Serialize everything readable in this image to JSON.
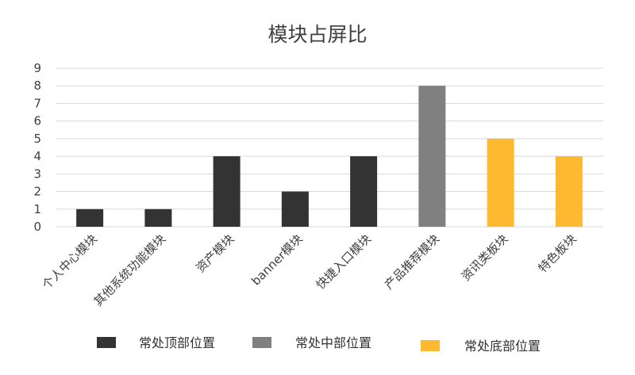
{
  "chart_data": {
    "type": "bar",
    "title": "模块占屏比",
    "xlabel": "",
    "ylabel": "",
    "ylim": [
      0,
      9
    ],
    "yticks": [
      0,
      1,
      2,
      3,
      4,
      5,
      6,
      7,
      8,
      9
    ],
    "grid": true,
    "legend_position": "bottom",
    "categories": [
      "个人中心模块",
      "其他系统功能模块",
      "资产模块",
      "banner模块",
      "快捷入口模块",
      "产品推荐模块",
      "资讯类板块",
      "特色板块"
    ],
    "values": [
      1,
      1,
      4,
      2,
      4,
      8,
      5,
      4
    ],
    "groups": [
      "top",
      "top",
      "top",
      "top",
      "top",
      "middle",
      "bottom",
      "bottom"
    ],
    "legend": [
      {
        "key": "top",
        "label": "常处顶部位置",
        "color": "#333333"
      },
      {
        "key": "middle",
        "label": "常处中部位置",
        "color": "#808080"
      },
      {
        "key": "bottom",
        "label": "常处底部位置",
        "color": "#FDBA31"
      }
    ]
  }
}
